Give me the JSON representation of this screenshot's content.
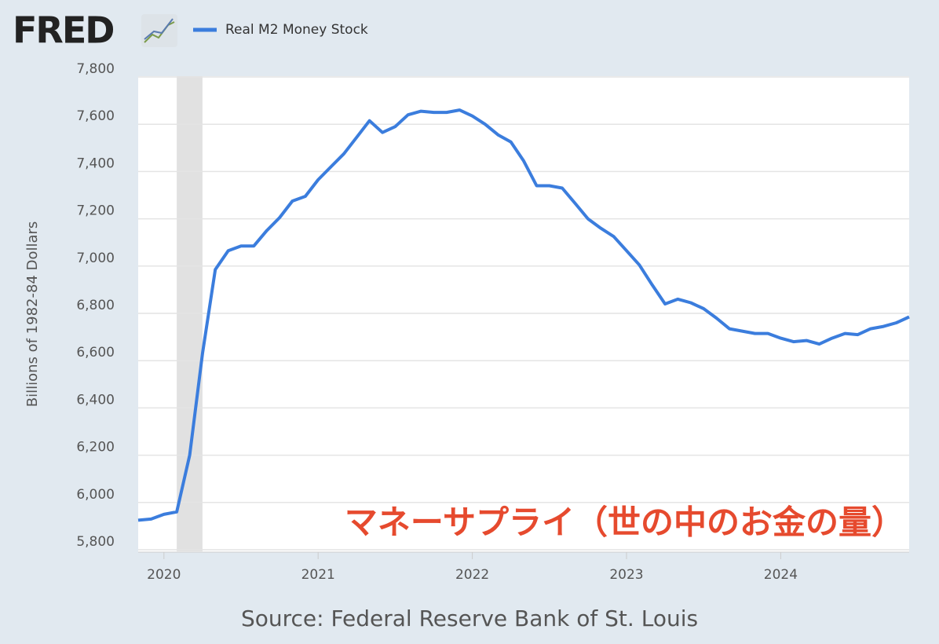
{
  "chart_data": {
    "type": "line",
    "logo": "FRED",
    "ylabel": "Billions of 1982-84 Dollars",
    "source": "Source: Federal Reserve Bank of St. Louis",
    "annotation": "マネーサプライ（世の中のお金の量）",
    "x": [
      2019.833,
      2019.917,
      2020.0,
      2020.083,
      2020.167,
      2020.25,
      2020.333,
      2020.417,
      2020.5,
      2020.583,
      2020.667,
      2020.75,
      2020.833,
      2020.917,
      2021.0,
      2021.083,
      2021.167,
      2021.25,
      2021.333,
      2021.417,
      2021.5,
      2021.583,
      2021.667,
      2021.75,
      2021.833,
      2021.917,
      2022.0,
      2022.083,
      2022.167,
      2022.25,
      2022.333,
      2022.417,
      2022.5,
      2022.583,
      2022.667,
      2022.75,
      2022.833,
      2022.917,
      2023.0,
      2023.083,
      2023.167,
      2023.25,
      2023.333,
      2023.417,
      2023.5,
      2023.583,
      2023.667,
      2023.75,
      2023.833,
      2023.917,
      2024.0,
      2024.083,
      2024.167,
      2024.25,
      2024.333,
      2024.417,
      2024.5,
      2024.583,
      2024.667,
      2024.75,
      2024.833
    ],
    "series": [
      {
        "name": "Real M2 Money Stock",
        "color": "#3b7ddd",
        "values": [
          5925,
          5930,
          5950,
          5960,
          6200,
          6630,
          6985,
          7065,
          7085,
          7085,
          7150,
          7205,
          7275,
          7295,
          7365,
          7420,
          7475,
          7545,
          7615,
          7565,
          7590,
          7640,
          7655,
          7650,
          7650,
          7660,
          7635,
          7600,
          7555,
          7525,
          7445,
          7340,
          7340,
          7330,
          7265,
          7200,
          7160,
          7125,
          7065,
          7005,
          6920,
          6840,
          6860,
          6845,
          6820,
          6780,
          6735,
          6725,
          6715,
          6715,
          6695,
          6680,
          6685,
          6670,
          6695,
          6715,
          6710,
          6735,
          6745,
          6760,
          6785
        ]
      }
    ],
    "recession": [
      2020.083,
      2020.25
    ],
    "xlim": [
      2019.833,
      2024.833
    ],
    "xticks": [
      2020,
      2021,
      2022,
      2023,
      2024
    ],
    "ylim": [
      5800,
      7800
    ],
    "yticks": [
      {
        "value": 5800,
        "label": "5,800"
      },
      {
        "value": 6000,
        "label": "6,000"
      },
      {
        "value": 6200,
        "label": "6,200"
      },
      {
        "value": 6400,
        "label": "6,400"
      },
      {
        "value": 6600,
        "label": "6,600"
      },
      {
        "value": 6800,
        "label": "6,800"
      },
      {
        "value": 7000,
        "label": "7,000"
      },
      {
        "value": 7200,
        "label": "7,200"
      },
      {
        "value": 7400,
        "label": "7,400"
      },
      {
        "value": 7600,
        "label": "7,600"
      },
      {
        "value": 7800,
        "label": "7,800"
      }
    ],
    "grid": true
  }
}
